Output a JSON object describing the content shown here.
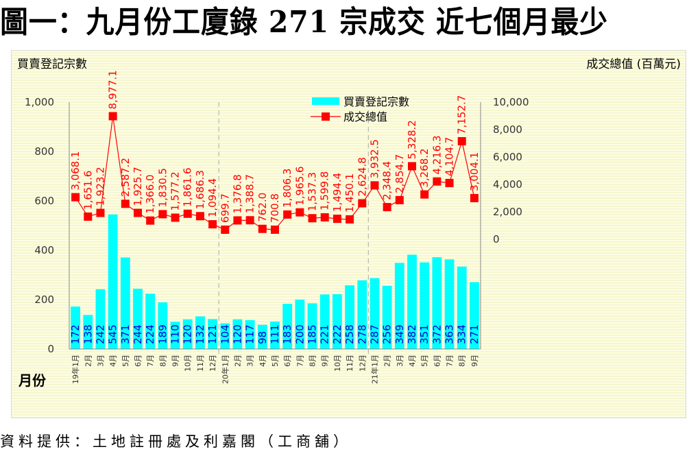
{
  "title": "圖一：九月份工廈錄 271 宗成交  近七個月最少",
  "source": "資料提供：土地註冊處及利嘉閣（工商舖）",
  "chart_data": {
    "type": "bar",
    "title": "圖一：九月份工廈錄 271 宗成交  近七個月最少",
    "xlabel": "月份",
    "ylabel": "買賣登記宗數",
    "y2label": "成交總值 (百萬元)",
    "ylim": [
      0,
      1000
    ],
    "y2lim": [
      0,
      10000
    ],
    "yticks": [
      "0",
      "200",
      "400",
      "600",
      "800",
      "1,000"
    ],
    "y2ticks": [
      "0",
      "2,000",
      "4,000",
      "6,000",
      "8,000",
      "10,000"
    ],
    "grid": false,
    "legend_position": "top-center",
    "categories": [
      "19年1月",
      "2月",
      "3月",
      "4月",
      "5月",
      "6月",
      "7月",
      "8月",
      "9月",
      "10月",
      "11月",
      "12月",
      "20年1月",
      "2月",
      "3月",
      "4月",
      "5月",
      "6月",
      "7月",
      "8月",
      "9月",
      "10月",
      "11月",
      "12月",
      "21年1月",
      "2月",
      "3月",
      "4月",
      "5月",
      "6月",
      "7月",
      "8月",
      "9月"
    ],
    "year_separators_after_index": [
      11,
      23
    ],
    "series": [
      {
        "name": "買賣登記宗數",
        "type": "bar",
        "axis": "left",
        "color": "#00ffff",
        "label_color": "#0000cc",
        "values": [
          172,
          138,
          242,
          545,
          371,
          244,
          224,
          189,
          110,
          120,
          132,
          121,
          104,
          120,
          117,
          98,
          111,
          183,
          200,
          185,
          221,
          222,
          258,
          278,
          287,
          256,
          349,
          382,
          351,
          372,
          363,
          334,
          271
        ]
      },
      {
        "name": "成交總值",
        "type": "line",
        "axis": "right",
        "color": "#ff0000",
        "marker": "square",
        "values": [
          3068.1,
          1651.6,
          1923.2,
          8977.1,
          2587.2,
          1925.7,
          1366.0,
          1830.5,
          1577.2,
          1861.6,
          1686.3,
          1094.4,
          699.7,
          1376.8,
          1388.7,
          762.0,
          700.8,
          1806.3,
          1965.6,
          1537.3,
          1599.8,
          1494.4,
          1450.1,
          2624.8,
          3932.5,
          2348.4,
          2854.7,
          5328.2,
          3268.2,
          4216.3,
          4104.7,
          7152.7,
          3004.1
        ],
        "labels": [
          "3,068.1",
          "1,651.6",
          "1,923.2",
          "8,977.1",
          "2,587.2",
          "1,925.7",
          "1,366.0",
          "1,830.5",
          "1,577.2",
          "1,861.6",
          "1,686.3",
          "1,094.4",
          "699.7",
          "1,376.8",
          "1,388.7",
          "762.0",
          "700.8",
          "1,806.3",
          "1,965.6",
          "1,537.3",
          "1,599.8",
          "1,494.4",
          "1,450.1",
          "2,624.8",
          "3,932.5",
          "2,348.4",
          "2,854.7",
          "5,328.2",
          "3,268.2",
          "4,216.3",
          "4,104.7",
          "7,152.7",
          "3,004.1"
        ]
      }
    ]
  }
}
